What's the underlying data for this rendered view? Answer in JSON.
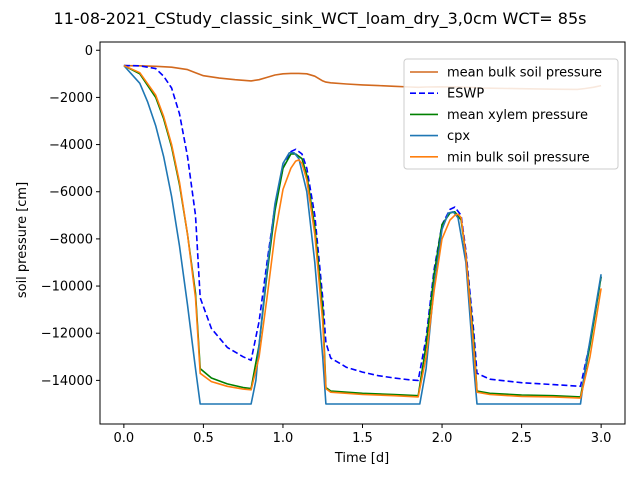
{
  "chart_data": {
    "type": "line",
    "title": "11-08-2021_CStudy_classic_sink_WCT_loam_dry_3,0cm  WCT= 85s",
    "xlabel": "Time [d]",
    "ylabel": "soil pressure [cm]",
    "xlim": [
      -0.15,
      3.15
    ],
    "ylim": [
      -15850,
      350
    ],
    "xticks": [
      0.0,
      0.5,
      1.0,
      1.5,
      2.0,
      2.5,
      3.0
    ],
    "xtick_labels": [
      "0.0",
      "0.5",
      "1.0",
      "1.5",
      "2.0",
      "2.5",
      "3.0"
    ],
    "yticks": [
      0,
      -2000,
      -4000,
      -6000,
      -8000,
      -10000,
      -12000,
      -14000
    ],
    "ytick_labels": [
      "0",
      "−2000",
      "−4000",
      "−6000",
      "−8000",
      "−10000",
      "−12000",
      "−14000"
    ],
    "grid": false,
    "legend_position": "top-right",
    "series": [
      {
        "name": "mean bulk soil pressure",
        "color": "#d2691e",
        "dash": "solid",
        "x": [
          0.0,
          0.1,
          0.2,
          0.3,
          0.4,
          0.45,
          0.5,
          0.6,
          0.7,
          0.8,
          0.85,
          0.9,
          0.95,
          1.0,
          1.05,
          1.1,
          1.15,
          1.2,
          1.25,
          1.27,
          1.3,
          1.4,
          1.5,
          1.6,
          1.7,
          1.8,
          1.85,
          1.9,
          2.0,
          2.1,
          2.2,
          2.25,
          2.3,
          2.5,
          2.7,
          2.85,
          2.9,
          2.95,
          3.0
        ],
        "y": [
          -650,
          -660,
          -680,
          -720,
          -820,
          -950,
          -1080,
          -1180,
          -1250,
          -1300,
          -1250,
          -1150,
          -1050,
          -1000,
          -980,
          -980,
          -1000,
          -1100,
          -1300,
          -1350,
          -1380,
          -1430,
          -1470,
          -1500,
          -1530,
          -1560,
          -1570,
          -1560,
          -1550,
          -1560,
          -1580,
          -1600,
          -1610,
          -1630,
          -1650,
          -1660,
          -1620,
          -1570,
          -1500
        ]
      },
      {
        "name": "ESWP",
        "color": "#0000ff",
        "dash": "dashed",
        "x": [
          0.0,
          0.1,
          0.2,
          0.25,
          0.3,
          0.35,
          0.4,
          0.45,
          0.48,
          0.55,
          0.65,
          0.75,
          0.8,
          0.85,
          0.9,
          0.95,
          1.0,
          1.05,
          1.08,
          1.12,
          1.15,
          1.2,
          1.25,
          1.27,
          1.3,
          1.4,
          1.5,
          1.6,
          1.7,
          1.8,
          1.85,
          1.9,
          1.95,
          2.0,
          2.05,
          2.08,
          2.12,
          2.15,
          2.2,
          2.22,
          2.3,
          2.5,
          2.7,
          2.87,
          2.93,
          3.0
        ],
        "y": [
          -650,
          -660,
          -780,
          -1100,
          -1600,
          -2700,
          -4500,
          -7000,
          -10500,
          -11800,
          -12600,
          -13000,
          -13150,
          -11500,
          -9000,
          -6600,
          -5000,
          -4300,
          -4200,
          -4400,
          -5000,
          -7000,
          -10500,
          -12400,
          -13050,
          -13450,
          -13650,
          -13800,
          -13900,
          -13980,
          -14000,
          -12200,
          -9300,
          -7400,
          -6750,
          -6650,
          -7000,
          -8500,
          -12000,
          -13700,
          -13950,
          -14100,
          -14180,
          -14250,
          -12400,
          -9600
        ]
      },
      {
        "name": "mean xylem pressure",
        "color": "#008000",
        "dash": "solid",
        "x": [
          0.0,
          0.1,
          0.2,
          0.25,
          0.3,
          0.35,
          0.4,
          0.45,
          0.48,
          0.55,
          0.65,
          0.75,
          0.8,
          0.85,
          0.9,
          0.95,
          1.0,
          1.05,
          1.08,
          1.12,
          1.15,
          1.2,
          1.25,
          1.27,
          1.3,
          1.5,
          1.7,
          1.85,
          1.9,
          1.95,
          2.0,
          2.05,
          2.08,
          2.12,
          2.15,
          2.2,
          2.22,
          2.3,
          2.5,
          2.7,
          2.87,
          2.93,
          3.0
        ],
        "y": [
          -650,
          -1000,
          -2000,
          -2900,
          -4100,
          -5700,
          -7800,
          -10300,
          -13500,
          -13900,
          -14150,
          -14300,
          -14350,
          -12500,
          -9500,
          -6800,
          -5000,
          -4400,
          -4400,
          -4600,
          -5300,
          -7500,
          -11000,
          -14300,
          -14450,
          -14550,
          -14600,
          -14650,
          -12500,
          -9500,
          -7400,
          -6900,
          -6850,
          -7200,
          -8700,
          -12400,
          -14450,
          -14550,
          -14620,
          -14650,
          -14700,
          -12500,
          -9600
        ]
      },
      {
        "name": "cpx",
        "color": "#1f77b4",
        "dash": "solid",
        "x": [
          0.0,
          0.1,
          0.15,
          0.2,
          0.25,
          0.3,
          0.35,
          0.4,
          0.45,
          0.48,
          0.5,
          0.8,
          0.83,
          0.85,
          0.9,
          0.95,
          1.0,
          1.04,
          1.07,
          1.1,
          1.15,
          1.2,
          1.25,
          1.27,
          1.86,
          1.9,
          1.95,
          2.0,
          2.04,
          2.07,
          2.1,
          2.15,
          2.2,
          2.22,
          2.87,
          2.9,
          2.95,
          3.0
        ],
        "y": [
          -650,
          -1400,
          -2200,
          -3200,
          -4500,
          -6200,
          -8300,
          -10800,
          -13500,
          -15000,
          -15000,
          -15000,
          -14000,
          -12500,
          -9300,
          -6500,
          -4800,
          -4350,
          -4350,
          -4600,
          -6000,
          -9000,
          -13000,
          -15000,
          -15000,
          -13500,
          -10000,
          -7600,
          -6900,
          -6850,
          -7100,
          -9000,
          -13500,
          -15000,
          -15000,
          -13500,
          -11500,
          -9500
        ]
      },
      {
        "name": "min bulk soil pressure",
        "color": "#ff7f0e",
        "dash": "solid",
        "x": [
          0.0,
          0.1,
          0.2,
          0.25,
          0.3,
          0.35,
          0.4,
          0.45,
          0.48,
          0.55,
          0.65,
          0.75,
          0.8,
          0.85,
          0.9,
          0.95,
          1.0,
          1.05,
          1.08,
          1.1,
          1.12,
          1.15,
          1.2,
          1.25,
          1.27,
          1.3,
          1.5,
          1.7,
          1.85,
          1.9,
          1.95,
          2.0,
          2.05,
          2.08,
          2.1,
          2.12,
          2.15,
          2.2,
          2.22,
          2.3,
          2.5,
          2.7,
          2.87,
          2.93,
          3.0
        ],
        "y": [
          -650,
          -950,
          -1900,
          -2800,
          -4000,
          -5600,
          -7800,
          -10500,
          -13700,
          -14050,
          -14250,
          -14370,
          -14400,
          -13000,
          -10500,
          -7800,
          -5900,
          -5000,
          -4700,
          -4650,
          -4800,
          -5500,
          -7800,
          -11500,
          -14350,
          -14500,
          -14600,
          -14650,
          -14700,
          -13000,
          -10200,
          -8000,
          -7200,
          -7000,
          -6950,
          -7100,
          -8700,
          -12700,
          -14500,
          -14600,
          -14680,
          -14700,
          -14750,
          -13000,
          -10100
        ]
      }
    ]
  }
}
